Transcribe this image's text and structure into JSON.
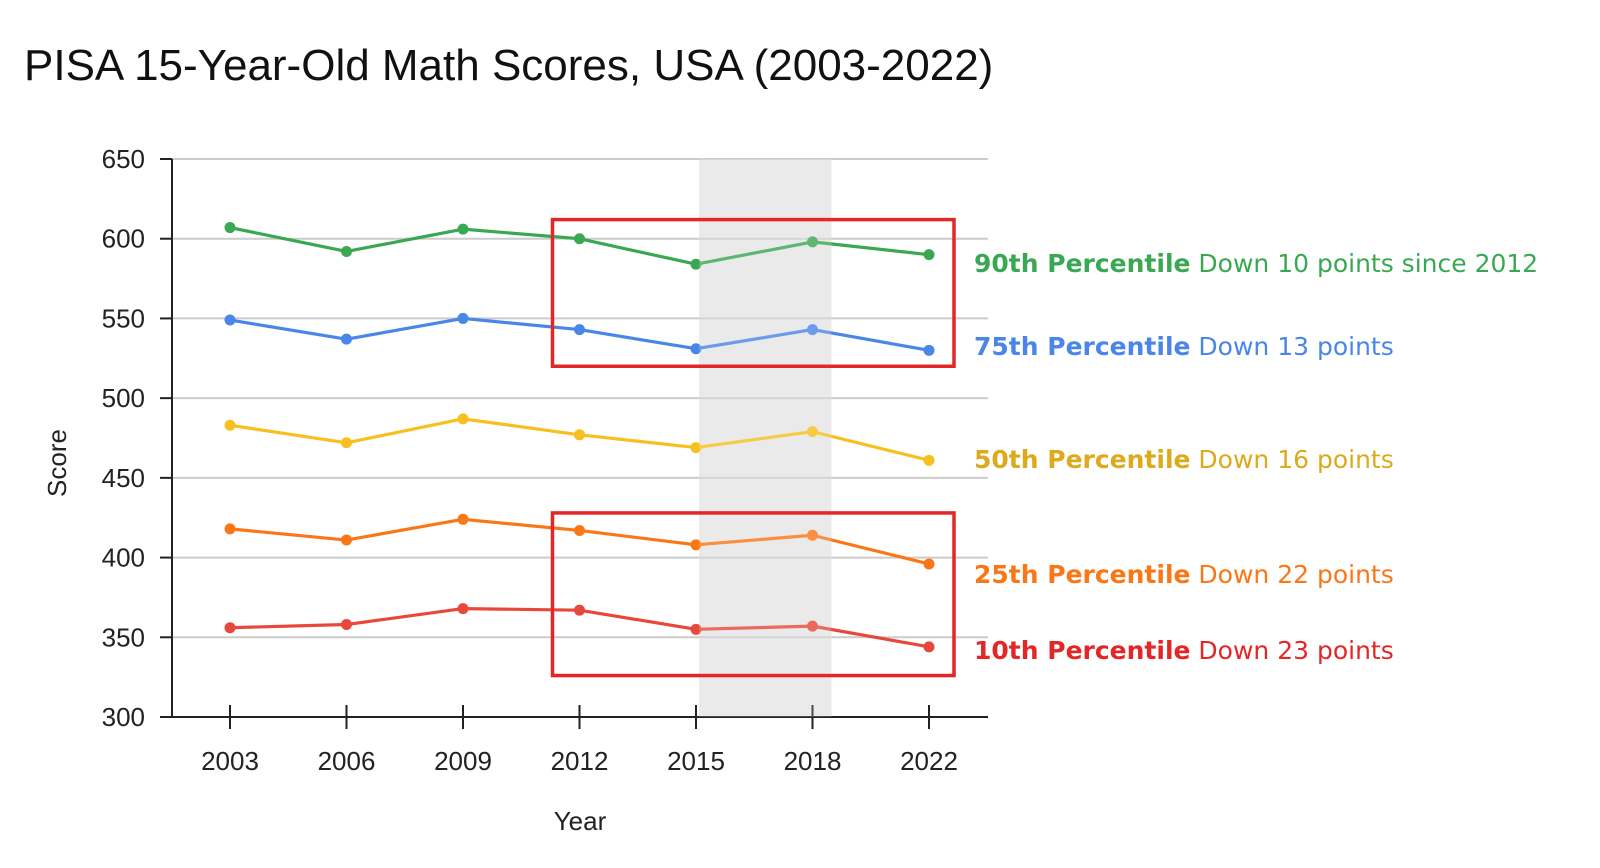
{
  "chart_data": {
    "type": "line",
    "title": "PISA 15-Year-Old Math Scores, USA (2003-2022)",
    "xlabel": "Year",
    "ylabel": "Score",
    "categories": [
      "2003",
      "2006",
      "2009",
      "2012",
      "2015",
      "2018",
      "2022"
    ],
    "ylim": [
      300,
      650
    ],
    "yticks": [
      "650",
      "600",
      "550",
      "500",
      "450",
      "400",
      "350",
      "300"
    ],
    "grid": true,
    "shaded_region": {
      "from": "2015",
      "to": "2018",
      "color": "#e6e6e6"
    },
    "highlight_boxes": [
      {
        "from_category": "2012",
        "to_category": "2022",
        "ymin": 520,
        "ymax": 612,
        "color": "#e32727"
      },
      {
        "from_category": "2012",
        "to_category": "2022",
        "ymin": 326,
        "ymax": 428,
        "color": "#e32727"
      }
    ],
    "series": [
      {
        "name": "90th Percentile",
        "color": "#3aa853",
        "values": [
          607,
          592,
          606,
          600,
          584,
          598,
          590
        ],
        "annotation": {
          "bold": "90th Percentile",
          "text": " Down 10 points since 2012",
          "color": "#3aa853"
        }
      },
      {
        "name": "75th Percentile",
        "color": "#4a86e8",
        "values": [
          549,
          537,
          550,
          543,
          531,
          543,
          530
        ],
        "annotation": {
          "bold": "75th Percentile",
          "text": " Down 13 points",
          "color": "#4a86e8"
        }
      },
      {
        "name": "50th Percentile",
        "color": "#f7c01e",
        "values": [
          483,
          472,
          487,
          477,
          469,
          479,
          461
        ],
        "annotation": {
          "bold": "50th Percentile",
          "text": " Down 16 points",
          "color": "#dcaa1c"
        }
      },
      {
        "name": "25th Percentile",
        "color": "#fa7717",
        "values": [
          418,
          411,
          424,
          417,
          408,
          414,
          396
        ],
        "annotation": {
          "bold": "25th Percentile",
          "text": " Down 22 points",
          "color": "#fa7717"
        }
      },
      {
        "name": "10th Percentile",
        "color": "#e8483b",
        "values": [
          356,
          358,
          368,
          367,
          355,
          357,
          344
        ],
        "annotation": {
          "bold": "10th Percentile",
          "text": " Down 23 points",
          "color": "#e32727"
        }
      }
    ]
  }
}
